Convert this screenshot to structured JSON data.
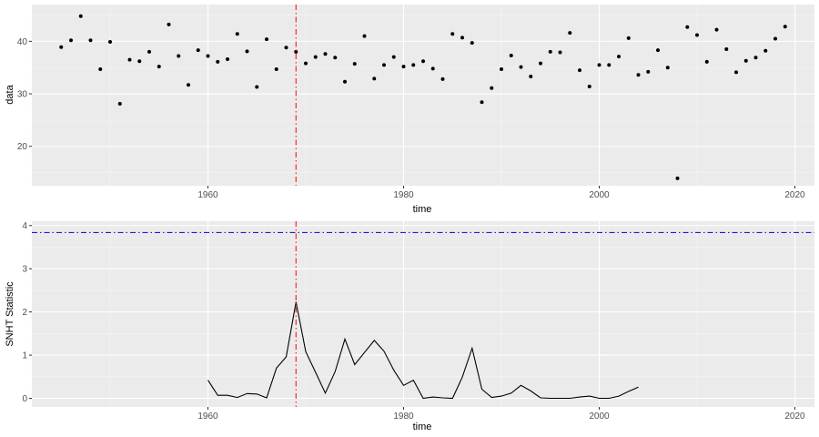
{
  "chart_data": [
    {
      "type": "scatter",
      "xlabel": "time",
      "ylabel": "data",
      "xlim": [
        1942,
        2022
      ],
      "ylim": [
        12.5,
        47
      ],
      "x_ticks": [
        1960,
        1980,
        2000,
        2020
      ],
      "y_ticks": [
        20,
        30,
        40
      ],
      "x_tick_labels": [
        "1960",
        "1980",
        "2000",
        "2020"
      ],
      "y_tick_labels": [
        "20",
        "30",
        "40"
      ],
      "grid": true,
      "vline_x": 1969,
      "vline_color": "#ff0000",
      "point_color": "#000000",
      "panel_bg": "#ebebeb",
      "x": [
        1945,
        1946,
        1947,
        1948,
        1949,
        1950,
        1951,
        1952,
        1953,
        1954,
        1955,
        1956,
        1957,
        1958,
        1959,
        1960,
        1961,
        1962,
        1963,
        1964,
        1965,
        1966,
        1967,
        1968,
        1969,
        1970,
        1971,
        1972,
        1973,
        1974,
        1975,
        1976,
        1977,
        1978,
        1979,
        1980,
        1981,
        1982,
        1983,
        1984,
        1985,
        1986,
        1987,
        1988,
        1989,
        1990,
        1991,
        1992,
        1993,
        1994,
        1995,
        1996,
        1997,
        1998,
        1999,
        2000,
        2001,
        2002,
        2003,
        2004,
        2005,
        2006,
        2007,
        2008,
        2009,
        2010,
        2011,
        2012,
        2013,
        2014,
        2015,
        2016,
        2017,
        2018,
        2019
      ],
      "y": [
        38.9,
        40.2,
        44.8,
        40.2,
        34.7,
        39.9,
        28.1,
        36.5,
        36.2,
        38.0,
        35.2,
        43.2,
        37.2,
        31.7,
        38.3,
        37.2,
        36.1,
        36.6,
        41.4,
        38.1,
        31.3,
        40.4,
        34.7,
        38.8,
        38.0,
        35.8,
        37.0,
        37.6,
        36.9,
        32.3,
        35.7,
        41.0,
        32.9,
        35.5,
        37.0,
        35.2,
        35.5,
        36.2,
        34.8,
        32.8,
        41.4,
        40.7,
        39.7,
        28.4,
        31.1,
        34.7,
        37.3,
        35.1,
        33.3,
        35.8,
        38.0,
        37.9,
        41.6,
        34.5,
        31.4,
        35.5,
        35.5,
        37.1,
        40.6,
        33.6,
        34.2,
        38.3,
        35.0,
        13.9,
        42.7,
        41.2,
        36.1,
        42.2,
        38.5,
        34.1,
        36.3,
        36.9,
        38.2,
        40.5,
        42.8
      ]
    },
    {
      "type": "line",
      "xlabel": "time",
      "ylabel": "SNHT Statistic",
      "xlim": [
        1942,
        2022
      ],
      "ylim": [
        -0.2,
        4.1
      ],
      "x_ticks": [
        1960,
        1980,
        2000,
        2020
      ],
      "y_ticks": [
        0,
        1,
        2,
        3,
        4
      ],
      "x_tick_labels": [
        "1960",
        "1980",
        "2000",
        "2020"
      ],
      "y_tick_labels": [
        "0",
        "1",
        "2",
        "3",
        "4"
      ],
      "grid": true,
      "vline_x": 1969,
      "vline_color": "#ff0000",
      "hline_y": 3.84,
      "hline_color": "#0000cd",
      "line_color": "#000000",
      "panel_bg": "#ebebeb",
      "x": [
        1960,
        1961,
        1962,
        1963,
        1964,
        1965,
        1966,
        1967,
        1968,
        1969,
        1970,
        1971,
        1972,
        1973,
        1974,
        1975,
        1976,
        1977,
        1978,
        1979,
        1980,
        1981,
        1982,
        1983,
        1984,
        1985,
        1986,
        1987,
        1988,
        1989,
        1990,
        1991,
        1992,
        1993,
        1994,
        1995,
        1996,
        1997,
        1998,
        1999,
        2000,
        2001,
        2002,
        2003,
        2004
      ],
      "y": [
        0.42,
        0.07,
        0.07,
        0.02,
        0.11,
        0.1,
        0.01,
        0.7,
        0.96,
        2.23,
        1.08,
        0.6,
        0.12,
        0.62,
        1.37,
        0.78,
        1.06,
        1.34,
        1.09,
        0.65,
        0.3,
        0.42,
        0.0,
        0.03,
        0.01,
        0.0,
        0.49,
        1.16,
        0.21,
        0.02,
        0.05,
        0.12,
        0.3,
        0.17,
        0.01,
        0.0,
        0.0,
        0.0,
        0.03,
        0.05,
        0.0,
        0.0,
        0.05,
        0.16,
        0.26
      ]
    }
  ]
}
